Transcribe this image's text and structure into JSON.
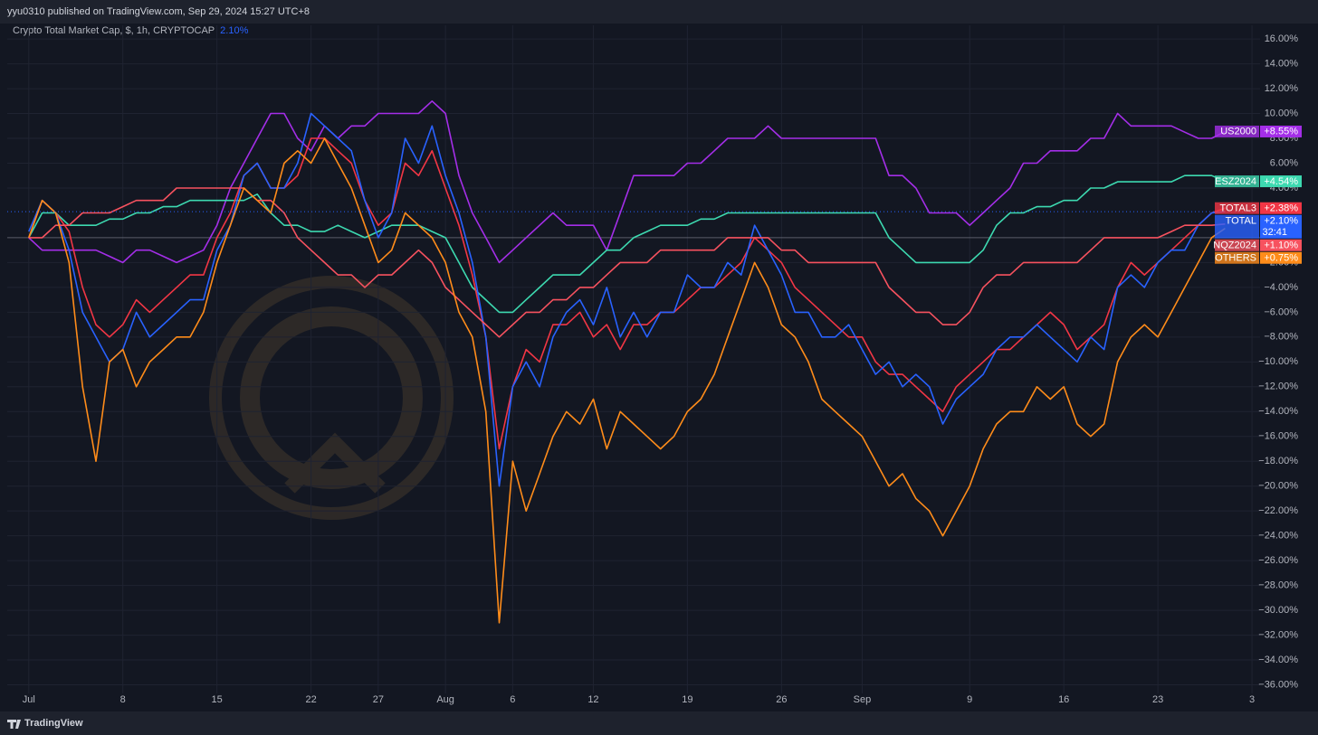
{
  "header": "yyu0310 published on TradingView.com, Sep 29, 2024 15:27 UTC+8",
  "footer": "TradingView",
  "chart_data": {
    "type": "line",
    "title": "Crypto Total Market Cap, $, 1h, CRYPTOCAP",
    "title_value": "2.10%",
    "grid": true,
    "x": [
      0,
      1,
      2,
      3,
      4,
      5,
      6,
      7,
      8,
      9,
      10,
      11,
      12,
      13,
      14,
      15,
      16,
      17,
      18,
      19,
      20,
      21,
      22,
      23,
      24,
      25,
      26,
      27,
      28,
      29,
      30,
      31,
      32,
      33,
      34,
      35,
      36,
      37,
      38,
      39,
      40,
      41,
      42,
      43,
      44,
      45,
      46,
      47,
      48,
      49,
      50,
      51,
      52,
      53,
      54,
      55,
      56,
      57,
      58,
      59,
      60,
      61,
      62,
      63,
      64,
      65,
      66,
      67,
      68,
      69,
      70,
      71,
      72,
      73,
      74,
      75,
      76,
      77,
      78,
      79,
      80,
      81,
      82,
      83,
      84,
      85,
      86,
      87,
      88,
      89
    ],
    "xlim": [
      -1.6,
      91.6
    ],
    "xticks": [
      {
        "value": 0,
        "label": "Jul"
      },
      {
        "value": 7,
        "label": "8"
      },
      {
        "value": 14,
        "label": "15"
      },
      {
        "value": 21,
        "label": "22"
      },
      {
        "value": 26,
        "label": "27"
      },
      {
        "value": 31,
        "label": "Aug"
      },
      {
        "value": 36,
        "label": "6"
      },
      {
        "value": 42,
        "label": "12"
      },
      {
        "value": 49,
        "label": "19"
      },
      {
        "value": 56,
        "label": "26"
      },
      {
        "value": 62,
        "label": "Sep"
      },
      {
        "value": 70,
        "label": "9"
      },
      {
        "value": 77,
        "label": "16"
      },
      {
        "value": 84,
        "label": "23"
      },
      {
        "value": 91,
        "label": "3"
      }
    ],
    "ylim": [
      -38,
      17.1
    ],
    "yticks": [
      {
        "value": 16,
        "label": "16.00%"
      },
      {
        "value": 14,
        "label": "14.00%"
      },
      {
        "value": 12,
        "label": "12.00%"
      },
      {
        "value": 10,
        "label": "10.00%"
      },
      {
        "value": 8,
        "label": "8.00%"
      },
      {
        "value": 6,
        "label": "6.00%"
      },
      {
        "value": 4,
        "label": "4.00%"
      },
      {
        "value": -2,
        "label": "−2.00%"
      },
      {
        "value": -4,
        "label": "−4.00%"
      },
      {
        "value": -6,
        "label": "−6.00%"
      },
      {
        "value": -8,
        "label": "−8.00%"
      },
      {
        "value": -10,
        "label": "−10.00%"
      },
      {
        "value": -12,
        "label": "−12.00%"
      },
      {
        "value": -14,
        "label": "−14.00%"
      },
      {
        "value": -16,
        "label": "−16.00%"
      },
      {
        "value": -18,
        "label": "−18.00%"
      },
      {
        "value": -20,
        "label": "−20.00%"
      },
      {
        "value": -22,
        "label": "−22.00%"
      },
      {
        "value": -24,
        "label": "−24.00%"
      },
      {
        "value": -26,
        "label": "−26.00%"
      },
      {
        "value": -28,
        "label": "−28.00%"
      },
      {
        "value": -30,
        "label": "−30.00%"
      },
      {
        "value": -32,
        "label": "−32.00%"
      },
      {
        "value": -34,
        "label": "−34.00%"
      },
      {
        "value": -36,
        "label": "−36.00%"
      }
    ],
    "series": [
      {
        "name": "US2000",
        "color": "#a42ee8",
        "end_label": "+8.55%",
        "values": [
          0,
          -1,
          -1,
          -1,
          -1,
          -1,
          -1.5,
          -2,
          -1,
          -1,
          -1.5,
          -2,
          -1.5,
          -1,
          1,
          4,
          6,
          8,
          10,
          10,
          8,
          7,
          9,
          8,
          9,
          9,
          10,
          10,
          10,
          10,
          11,
          10,
          5,
          2,
          0,
          -2,
          -1,
          0,
          1,
          2,
          1,
          1,
          1,
          -1,
          2,
          5,
          5,
          5,
          5,
          6,
          6,
          7,
          8,
          8,
          8,
          9,
          8,
          8,
          8,
          8,
          8,
          8,
          8,
          8,
          5,
          5,
          4,
          2,
          2,
          2,
          1,
          2,
          3,
          4,
          6,
          6,
          7,
          7,
          7,
          8,
          8,
          10,
          9,
          9,
          9,
          9,
          8.5,
          8,
          8,
          8.55
        ]
      },
      {
        "name": "ESZ2024",
        "color": "#3dd9b0",
        "end_label": "+4.54%",
        "values": [
          0,
          2,
          2,
          1,
          1,
          1,
          1.5,
          1.5,
          2,
          2,
          2.5,
          2.5,
          3,
          3,
          3,
          3,
          3,
          3.5,
          2,
          1,
          1,
          0.5,
          0.5,
          1,
          0.5,
          0,
          0.5,
          1,
          1,
          1,
          0.5,
          0,
          -2,
          -4,
          -5,
          -6,
          -6,
          -5,
          -4,
          -3,
          -3,
          -3,
          -2,
          -1,
          -1,
          0,
          0.5,
          1,
          1,
          1,
          1.5,
          1.5,
          2,
          2,
          2,
          2,
          2,
          2,
          2,
          2,
          2,
          2,
          2,
          2,
          0,
          -1,
          -2,
          -2,
          -2,
          -2,
          -2,
          -1,
          1,
          2,
          2,
          2.5,
          2.5,
          3,
          3,
          4,
          4,
          4.5,
          4.5,
          4.5,
          4.5,
          4.5,
          5,
          5,
          5,
          4.54
        ]
      },
      {
        "name": "TOTAL3",
        "color": "#f23645",
        "end_label": "+2.38%",
        "values": [
          0,
          3,
          2,
          0.5,
          -4,
          -7,
          -8,
          -7,
          -5,
          -6,
          -5,
          -4,
          -3,
          -3,
          0,
          2,
          5,
          6,
          4,
          4,
          5,
          8,
          8,
          7,
          6,
          3,
          1,
          2,
          6,
          5,
          7,
          4,
          1,
          -3,
          -8,
          -17,
          -12,
          -9,
          -10,
          -7,
          -7,
          -6,
          -8,
          -7,
          -9,
          -7,
          -7,
          -6,
          -6,
          -5,
          -4,
          -4,
          -3,
          -2,
          0,
          -1,
          -2,
          -4,
          -5,
          -6,
          -7,
          -8,
          -8,
          -10,
          -11,
          -11,
          -12,
          -13,
          -14,
          -12,
          -11,
          -10,
          -9,
          -9,
          -8,
          -7,
          -6,
          -7,
          -9,
          -8,
          -7,
          -4,
          -2,
          -3,
          -2,
          -1,
          0,
          1,
          2,
          2.38
        ]
      },
      {
        "name": "TOTAL",
        "color": "#2962ff",
        "end_label": "+2.10%",
        "countdown": "32:41",
        "values": [
          0.5,
          3,
          2,
          -1,
          -6,
          -8,
          -10,
          -9,
          -6,
          -8,
          -7,
          -6,
          -5,
          -5,
          -1,
          1,
          5,
          6,
          4,
          4,
          6,
          10,
          9,
          8,
          7,
          3,
          0,
          2,
          8,
          6,
          9,
          5,
          2,
          -2,
          -8,
          -20,
          -12,
          -10,
          -12,
          -8,
          -6,
          -5,
          -7,
          -4,
          -8,
          -6,
          -8,
          -6,
          -6,
          -3,
          -4,
          -4,
          -2,
          -3,
          1,
          -1,
          -3,
          -6,
          -6,
          -8,
          -8,
          -7,
          -9,
          -11,
          -10,
          -12,
          -11,
          -12,
          -15,
          -13,
          -12,
          -11,
          -9,
          -8,
          -8,
          -7,
          -8,
          -9,
          -10,
          -8,
          -9,
          -4,
          -3,
          -4,
          -2,
          -1,
          -1,
          1,
          2,
          2.1
        ]
      },
      {
        "name": "NQZ2024",
        "color": "#f7525f",
        "end_label": "+1.10%",
        "values": [
          0,
          0,
          1,
          1,
          2,
          2,
          2,
          2.5,
          3,
          3,
          3,
          4,
          4,
          4,
          4,
          4,
          4,
          3,
          3,
          2,
          0,
          -1,
          -2,
          -3,
          -3,
          -4,
          -3,
          -3,
          -2,
          -1,
          -2,
          -4,
          -5,
          -6,
          -7,
          -8,
          -7,
          -6,
          -6,
          -5,
          -5,
          -4,
          -4,
          -3,
          -2,
          -2,
          -2,
          -1,
          -1,
          -1,
          -1,
          -1,
          0,
          0,
          0,
          0,
          -1,
          -1,
          -2,
          -2,
          -2,
          -2,
          -2,
          -2,
          -4,
          -5,
          -6,
          -6,
          -7,
          -7,
          -6,
          -4,
          -3,
          -3,
          -2,
          -2,
          -2,
          -2,
          -2,
          -1,
          0,
          0,
          0,
          0,
          0,
          0.5,
          1,
          1,
          1,
          1.1
        ]
      },
      {
        "name": "OTHERS",
        "color": "#ff8c1a",
        "end_label": "+0.75%",
        "values": [
          0,
          3,
          2,
          -2,
          -12,
          -18,
          -10,
          -9,
          -12,
          -10,
          -9,
          -8,
          -8,
          -6,
          -2,
          1,
          4,
          3,
          2,
          6,
          7,
          6,
          8,
          6,
          4,
          1,
          -2,
          -1,
          2,
          1,
          0,
          -2,
          -6,
          -8,
          -14,
          -31,
          -18,
          -22,
          -19,
          -16,
          -14,
          -15,
          -13,
          -17,
          -14,
          -15,
          -16,
          -17,
          -16,
          -14,
          -13,
          -11,
          -8,
          -5,
          -2,
          -4,
          -7,
          -8,
          -10,
          -13,
          -14,
          -15,
          -16,
          -18,
          -20,
          -19,
          -21,
          -22,
          -24,
          -22,
          -20,
          -17,
          -15,
          -14,
          -14,
          -12,
          -13,
          -12,
          -15,
          -16,
          -15,
          -10,
          -8,
          -7,
          -8,
          -6,
          -4,
          -2,
          0,
          0.75
        ]
      }
    ]
  }
}
